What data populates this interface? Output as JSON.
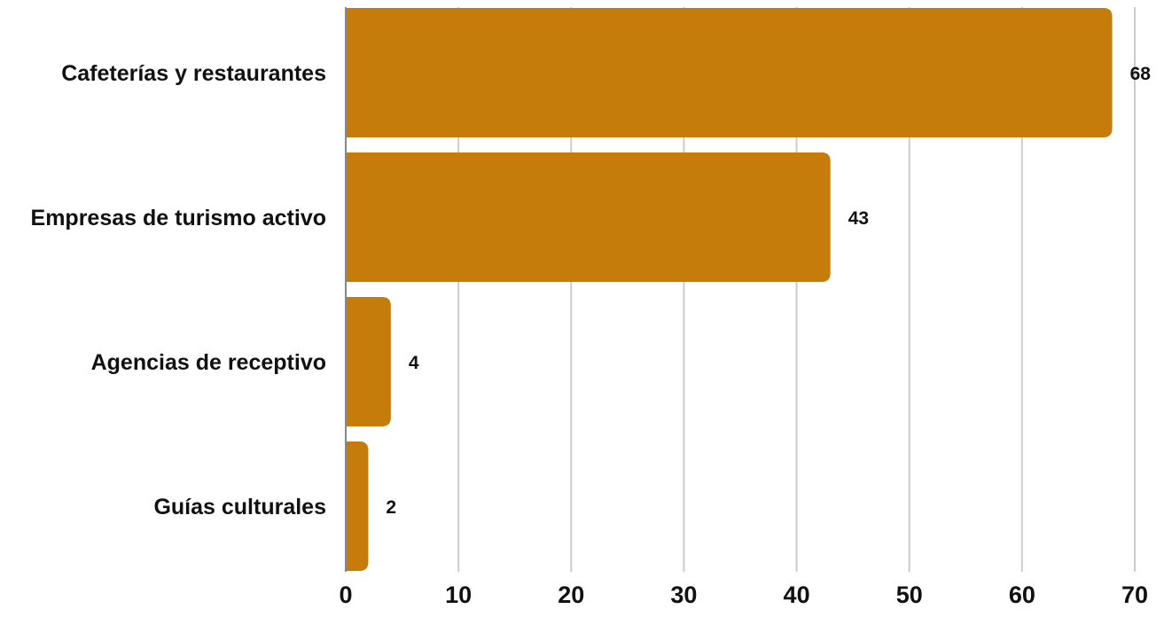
{
  "chart_data": {
    "type": "bar",
    "orientation": "horizontal",
    "title": "",
    "xlabel": "",
    "ylabel": "",
    "categories": [
      "Cafeterías y restaurantes",
      "Empresas de turismo activo",
      "Agencias de receptivo",
      "Guías culturales"
    ],
    "values": [
      68,
      43,
      4,
      2
    ],
    "xlim": [
      0,
      70
    ],
    "xticks": [
      0,
      10,
      20,
      30,
      40,
      50,
      60,
      70
    ],
    "grid": true,
    "legend": "none",
    "colors": {
      "bar": "#C67C0A",
      "grid": "#CCCCCC",
      "axis": "#888888",
      "text": "#111111"
    }
  }
}
